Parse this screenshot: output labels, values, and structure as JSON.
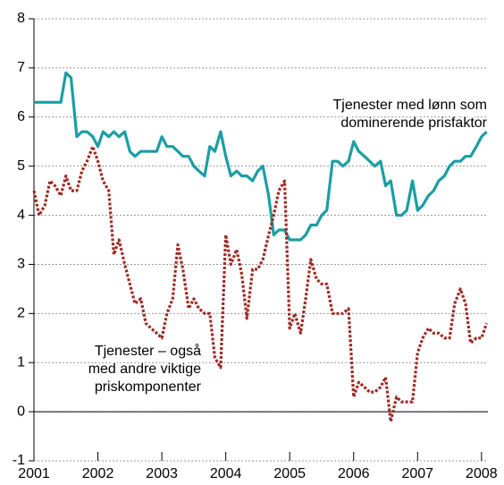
{
  "chart_data": {
    "type": "line",
    "x": [
      2001,
      2001.08,
      2001.17,
      2001.25,
      2001.33,
      2001.42,
      2001.5,
      2001.58,
      2001.67,
      2001.75,
      2001.83,
      2001.92,
      2002,
      2002.08,
      2002.17,
      2002.25,
      2002.33,
      2002.42,
      2002.5,
      2002.58,
      2002.67,
      2002.75,
      2002.83,
      2002.92,
      2003,
      2003.08,
      2003.17,
      2003.25,
      2003.33,
      2003.42,
      2003.5,
      2003.58,
      2003.67,
      2003.75,
      2003.83,
      2003.92,
      2004,
      2004.08,
      2004.17,
      2004.25,
      2004.33,
      2004.42,
      2004.5,
      2004.58,
      2004.67,
      2004.75,
      2004.83,
      2004.92,
      2005,
      2005.08,
      2005.17,
      2005.25,
      2005.33,
      2005.42,
      2005.5,
      2005.58,
      2005.67,
      2005.75,
      2005.83,
      2005.92,
      2006,
      2006.08,
      2006.17,
      2006.25,
      2006.33,
      2006.42,
      2006.5,
      2006.58,
      2006.67,
      2006.75,
      2006.83,
      2006.92,
      2007,
      2007.08,
      2007.17,
      2007.25,
      2007.33,
      2007.42,
      2007.5,
      2007.58,
      2007.67,
      2007.75,
      2007.83,
      2007.92,
      2008,
      2008.08
    ],
    "series": [
      {
        "color": "#1b9ea4",
        "style": "solid",
        "values": [
          6.3,
          6.3,
          6.3,
          6.3,
          6.3,
          6.3,
          6.9,
          6.8,
          5.6,
          5.7,
          5.7,
          5.6,
          5.4,
          5.7,
          5.6,
          5.7,
          5.6,
          5.7,
          5.3,
          5.2,
          5.3,
          5.3,
          5.3,
          5.3,
          5.6,
          5.4,
          5.4,
          5.3,
          5.2,
          5.2,
          5.0,
          4.9,
          4.8,
          5.4,
          5.3,
          5.7,
          5.2,
          4.8,
          4.9,
          4.8,
          4.8,
          4.7,
          4.9,
          5.0,
          4.4,
          3.6,
          3.7,
          3.7,
          3.5,
          3.5,
          3.5,
          3.6,
          3.8,
          3.8,
          4.0,
          4.1,
          5.1,
          5.1,
          5.0,
          5.1,
          5.5,
          5.3,
          5.2,
          5.1,
          5.0,
          5.1,
          4.6,
          4.7,
          4.0,
          4.0,
          4.1,
          4.7,
          4.1,
          4.2,
          4.4,
          4.5,
          4.7,
          4.8,
          5.0,
          5.1,
          5.1,
          5.2,
          5.2,
          5.4,
          5.6,
          5.7
        ]
      },
      {
        "color": "#9e2a25",
        "style": "dotted",
        "values": [
          4.5,
          4.0,
          4.2,
          4.7,
          4.6,
          4.4,
          4.8,
          4.5,
          4.5,
          4.9,
          5.1,
          5.4,
          5.1,
          4.7,
          4.5,
          3.2,
          3.5,
          3.0,
          2.6,
          2.2,
          2.3,
          1.8,
          1.7,
          1.6,
          1.5,
          2.0,
          2.3,
          3.4,
          2.9,
          2.1,
          2.3,
          2.1,
          2.0,
          2.0,
          1.1,
          0.9,
          3.6,
          3.0,
          3.3,
          2.8,
          1.9,
          2.9,
          2.9,
          3.1,
          3.6,
          4.0,
          4.5,
          4.7,
          1.7,
          2.0,
          1.6,
          2.3,
          3.1,
          2.7,
          2.6,
          2.6,
          2.0,
          2.0,
          2.0,
          2.1,
          0.3,
          0.6,
          0.5,
          0.4,
          0.4,
          0.5,
          0.7,
          -0.2,
          0.3,
          0.2,
          0.2,
          0.2,
          1.2,
          1.5,
          1.7,
          1.6,
          1.6,
          1.5,
          1.5,
          2.2,
          2.5,
          2.2,
          1.4,
          1.5,
          1.5,
          1.8
        ]
      }
    ],
    "annotations": [
      [
        "Tjenester med lønn som",
        "dominerende prisfaktor"
      ],
      [
        "Tjenester – også",
        "med andre viktige",
        "priskomponenter"
      ]
    ],
    "xlim": [
      2001,
      2008.1
    ],
    "xticks": [
      2001,
      2002,
      2003,
      2004,
      2005,
      2006,
      2007,
      2008
    ],
    "ylim": [
      -1,
      8
    ],
    "yticks": [
      -1,
      0,
      1,
      2,
      3,
      4,
      5,
      6,
      7,
      8
    ],
    "grid": true
  }
}
